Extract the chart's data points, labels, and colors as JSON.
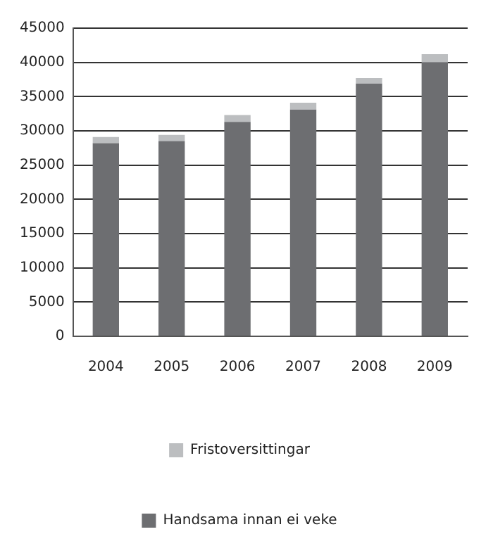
{
  "chart_data": {
    "type": "bar",
    "stacked": true,
    "categories": [
      "2004",
      "2005",
      "2006",
      "2007",
      "2008",
      "2009"
    ],
    "series": [
      {
        "name": "Handsama innan ei veke",
        "color": "#6d6e71",
        "values": [
          28200,
          28500,
          31300,
          33100,
          36900,
          40000
        ]
      },
      {
        "name": "Fristoversittingar",
        "color": "#bcbec0",
        "values": [
          900,
          900,
          1000,
          1000,
          800,
          1200
        ]
      }
    ],
    "ylim": [
      0,
      45000
    ],
    "yticks": [
      0,
      5000,
      10000,
      15000,
      20000,
      25000,
      30000,
      35000,
      40000,
      45000
    ],
    "grid": "y",
    "legend": "bottom"
  }
}
